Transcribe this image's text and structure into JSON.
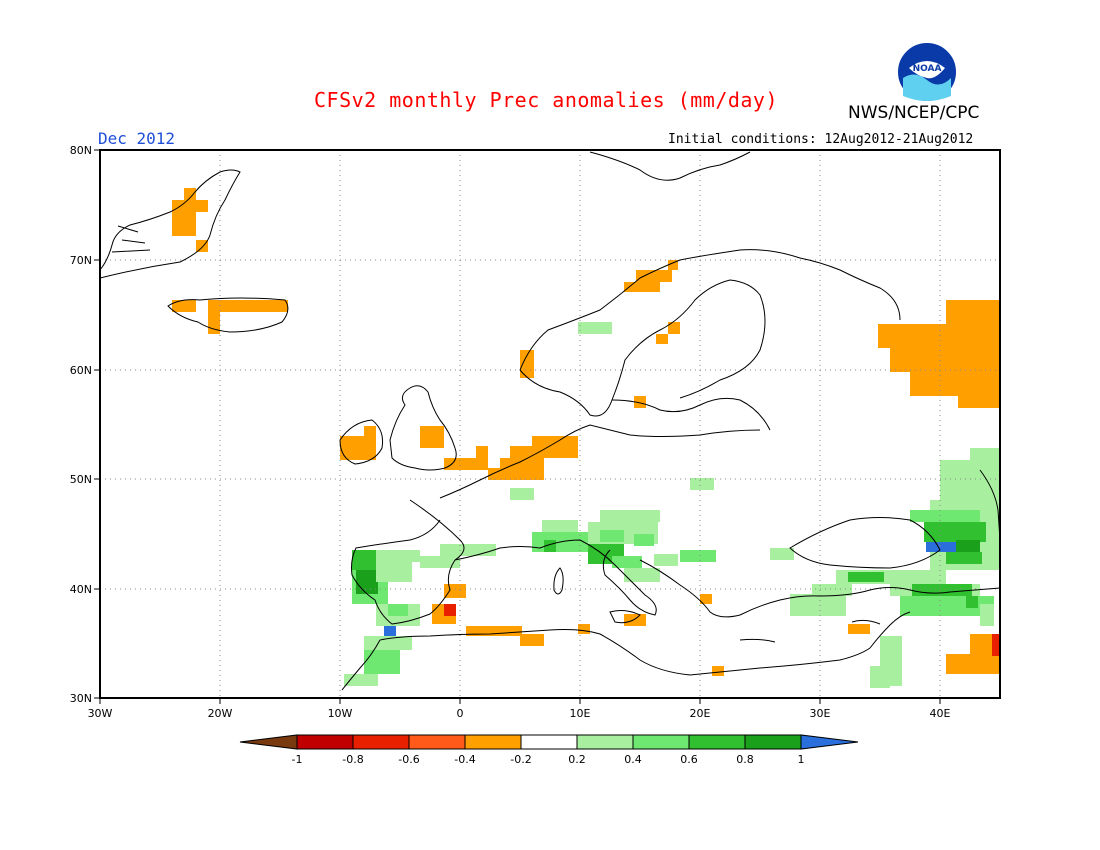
{
  "title": "CFSv2 monthly Prec anomalies (mm/day)",
  "agency": "NWS/NCEP/CPC",
  "logo_text": "NOAA",
  "month_label": "Dec 2012",
  "initial_conditions": "Initial conditions: 12Aug2012-21Aug2012",
  "map": {
    "lon_range": [
      -30,
      45
    ],
    "lat_range": [
      30,
      80
    ],
    "lon_tick_labels": [
      "30W",
      "20W",
      "10W",
      "0",
      "10E",
      "20E",
      "30E",
      "40E"
    ],
    "lat_tick_labels": [
      "30N",
      "40N",
      "50N",
      "60N",
      "70N",
      "80N"
    ],
    "gridlines": true
  },
  "colorbar": {
    "labels": [
      "-1",
      "-0.8",
      "-0.6",
      "-0.4",
      "-0.2",
      "0.2",
      "0.4",
      "0.6",
      "0.8",
      "1"
    ],
    "colors": [
      "#c00000",
      "#e82000",
      "#ff5a1a",
      "#ffa000",
      "#ffffff",
      "#a8f0a0",
      "#6ee870",
      "#30c030",
      "#1aa01a"
    ],
    "low_extend_color": "#7a3a10",
    "high_extend_color": "#2a6fdb"
  },
  "anomaly_legend_units": "mm/day"
}
